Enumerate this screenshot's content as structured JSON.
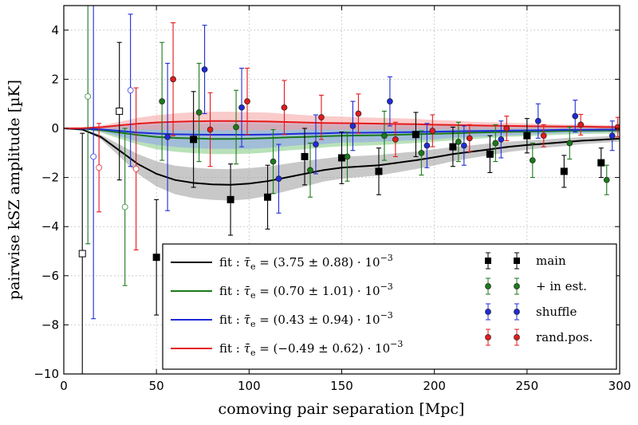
{
  "chart_data": {
    "type": "scatter",
    "xlabel": "comoving pair separation [Mpc]",
    "ylabel": "pairwise kSZ amplitude [µK]",
    "xlim": [
      0,
      300
    ],
    "ylim": [
      -10,
      5
    ],
    "xticks": [
      0,
      50,
      100,
      150,
      200,
      250,
      300
    ],
    "yticks": [
      -10,
      -8,
      -6,
      -4,
      -2,
      0,
      2,
      4
    ],
    "xtick_labels": [
      "0",
      "50",
      "100",
      "150",
      "200",
      "250",
      "300"
    ],
    "ytick_labels": [
      "−10",
      "−8",
      "−6",
      "−4",
      "−2",
      "0",
      "2",
      "4"
    ],
    "grid": true,
    "legend_position": "lower-right",
    "fits": [
      {
        "name": "fit : τ̄e = (3.75 ± 0.88) · 10⁻³",
        "label_prefix": "fit :",
        "label_sym": "τ̄",
        "label_sub": "e",
        "label_value": "= (3.75 ± 0.88) · 10",
        "label_exp": "−3",
        "color": "#000000",
        "band_color": "#9a9a9a",
        "x": [
          0,
          10,
          20,
          30,
          40,
          50,
          60,
          70,
          80,
          90,
          100,
          110,
          120,
          130,
          140,
          150,
          160,
          170,
          180,
          190,
          200,
          210,
          220,
          230,
          240,
          250,
          260,
          270,
          280,
          290,
          300
        ],
        "y": [
          0,
          -0.05,
          -0.35,
          -0.9,
          -1.45,
          -1.85,
          -2.1,
          -2.22,
          -2.28,
          -2.3,
          -2.25,
          -2.15,
          -2.0,
          -1.85,
          -1.7,
          -1.6,
          -1.55,
          -1.5,
          -1.4,
          -1.3,
          -1.18,
          -1.05,
          -0.95,
          -0.85,
          -0.75,
          -0.68,
          -0.62,
          -0.56,
          -0.5,
          -0.46,
          -0.42
        ],
        "band_lo": [
          0,
          -0.06,
          -0.44,
          -1.14,
          -1.85,
          -2.36,
          -2.68,
          -2.84,
          -2.91,
          -2.94,
          -2.88,
          -2.75,
          -2.56,
          -2.37,
          -2.17,
          -2.05,
          -1.98,
          -1.92,
          -1.79,
          -1.66,
          -1.51,
          -1.34,
          -1.21,
          -1.09,
          -0.96,
          -0.87,
          -0.79,
          -0.72,
          -0.64,
          -0.59,
          -0.54
        ],
        "band_hi": [
          0,
          -0.04,
          -0.26,
          -0.66,
          -1.05,
          -1.34,
          -1.52,
          -1.6,
          -1.65,
          -1.66,
          -1.62,
          -1.55,
          -1.44,
          -1.33,
          -1.23,
          -1.15,
          -1.12,
          -1.08,
          -1.01,
          -0.94,
          -0.85,
          -0.76,
          -0.69,
          -0.61,
          -0.54,
          -0.49,
          -0.45,
          -0.4,
          -0.36,
          -0.33,
          -0.3
        ]
      },
      {
        "name": "fit : τ̄e = (0.70 ± 1.01) · 10⁻³",
        "label_prefix": "fit :",
        "label_sym": "τ̄",
        "label_sub": "e",
        "label_value": "= (0.70 ± 1.01) · 10",
        "label_exp": "−3",
        "color": "#1a7a1a",
        "band_color": "#7fc97f",
        "x": [
          0,
          10,
          20,
          30,
          40,
          50,
          60,
          70,
          80,
          90,
          100,
          110,
          120,
          130,
          140,
          150,
          160,
          170,
          180,
          190,
          200,
          210,
          220,
          230,
          240,
          250,
          260,
          270,
          280,
          290,
          300
        ],
        "y": [
          0,
          -0.01,
          -0.07,
          -0.17,
          -0.27,
          -0.35,
          -0.39,
          -0.41,
          -0.43,
          -0.43,
          -0.42,
          -0.4,
          -0.37,
          -0.35,
          -0.32,
          -0.3,
          -0.29,
          -0.28,
          -0.26,
          -0.24,
          -0.22,
          -0.2,
          -0.18,
          -0.16,
          -0.14,
          -0.13,
          -0.12,
          -0.1,
          -0.09,
          -0.09,
          -0.08
        ],
        "band_lo": [
          0,
          -0.02,
          -0.17,
          -0.42,
          -0.66,
          -0.85,
          -0.95,
          -1.01,
          -1.05,
          -1.05,
          -1.03,
          -0.98,
          -0.9,
          -0.85,
          -0.78,
          -0.73,
          -0.71,
          -0.68,
          -0.64,
          -0.59,
          -0.54,
          -0.49,
          -0.44,
          -0.39,
          -0.34,
          -0.32,
          -0.29,
          -0.25,
          -0.22,
          -0.22,
          -0.2
        ],
        "band_hi": [
          0,
          0,
          0.03,
          0.08,
          0.12,
          0.15,
          0.17,
          0.19,
          0.19,
          0.19,
          0.19,
          0.18,
          0.16,
          0.15,
          0.14,
          0.13,
          0.13,
          0.12,
          0.12,
          0.11,
          0.1,
          0.09,
          0.08,
          0.07,
          0.06,
          0.06,
          0.05,
          0.05,
          0.04,
          0.04,
          0.04
        ]
      },
      {
        "name": "fit : τ̄e = (0.43 ± 0.94) · 10⁻³",
        "label_prefix": "fit :",
        "label_sym": "τ̄",
        "label_sub": "e",
        "label_value": "= (0.43 ± 0.94) · 10",
        "label_exp": "−3",
        "color": "#1f2bd6",
        "band_color": "#8fa0f0",
        "x": [
          0,
          10,
          20,
          30,
          40,
          50,
          60,
          70,
          80,
          90,
          100,
          110,
          120,
          130,
          140,
          150,
          160,
          170,
          180,
          190,
          200,
          210,
          220,
          230,
          240,
          250,
          260,
          270,
          280,
          290,
          300
        ],
        "y": [
          0,
          -0.01,
          -0.04,
          -0.1,
          -0.17,
          -0.21,
          -0.24,
          -0.25,
          -0.26,
          -0.26,
          -0.26,
          -0.25,
          -0.23,
          -0.21,
          -0.2,
          -0.18,
          -0.18,
          -0.17,
          -0.16,
          -0.15,
          -0.14,
          -0.12,
          -0.11,
          -0.1,
          -0.09,
          -0.08,
          -0.07,
          -0.06,
          -0.06,
          -0.05,
          -0.05
        ],
        "band_lo": [
          0,
          -0.03,
          -0.13,
          -0.32,
          -0.54,
          -0.67,
          -0.76,
          -0.8,
          -0.83,
          -0.83,
          -0.83,
          -0.8,
          -0.73,
          -0.67,
          -0.64,
          -0.57,
          -0.57,
          -0.54,
          -0.51,
          -0.48,
          -0.45,
          -0.38,
          -0.35,
          -0.32,
          -0.29,
          -0.25,
          -0.22,
          -0.19,
          -0.19,
          -0.16,
          -0.16
        ],
        "band_hi": [
          0,
          0.01,
          0.05,
          0.12,
          0.2,
          0.25,
          0.28,
          0.3,
          0.31,
          0.31,
          0.31,
          0.3,
          0.27,
          0.25,
          0.24,
          0.21,
          0.21,
          0.2,
          0.19,
          0.18,
          0.17,
          0.14,
          0.13,
          0.12,
          0.11,
          0.09,
          0.08,
          0.07,
          0.07,
          0.06,
          0.06
        ]
      },
      {
        "name": "fit : τ̄e = (−0.49 ± 0.62) · 10⁻³",
        "label_prefix": "fit :",
        "label_sym": "τ̄",
        "label_sub": "e",
        "label_value": "= (−0.49 ± 0.62) · 10",
        "label_exp": "−3",
        "color": "#e41a1c",
        "band_color": "#f5a0a0",
        "x": [
          0,
          10,
          20,
          30,
          40,
          50,
          60,
          70,
          80,
          90,
          100,
          110,
          120,
          130,
          140,
          150,
          160,
          170,
          180,
          190,
          200,
          210,
          220,
          230,
          240,
          250,
          260,
          270,
          280,
          290,
          300
        ],
        "y": [
          0,
          0.01,
          0.05,
          0.12,
          0.19,
          0.24,
          0.27,
          0.29,
          0.3,
          0.3,
          0.29,
          0.28,
          0.26,
          0.24,
          0.22,
          0.21,
          0.2,
          0.19,
          0.18,
          0.17,
          0.15,
          0.14,
          0.12,
          0.11,
          0.1,
          0.09,
          0.08,
          0.07,
          0.07,
          0.06,
          0.05
        ],
        "band_lo": [
          0,
          0,
          -0.01,
          -0.03,
          -0.05,
          -0.06,
          -0.07,
          -0.08,
          -0.08,
          -0.08,
          -0.08,
          -0.08,
          -0.07,
          -0.06,
          -0.06,
          -0.06,
          -0.05,
          -0.05,
          -0.05,
          -0.05,
          -0.04,
          -0.04,
          -0.03,
          -0.03,
          -0.03,
          -0.02,
          -0.02,
          -0.02,
          -0.02,
          -0.02,
          -0.01
        ],
        "band_hi": [
          0,
          0.02,
          0.11,
          0.27,
          0.43,
          0.54,
          0.61,
          0.66,
          0.68,
          0.68,
          0.66,
          0.64,
          0.59,
          0.54,
          0.5,
          0.48,
          0.45,
          0.43,
          0.41,
          0.39,
          0.34,
          0.32,
          0.27,
          0.25,
          0.23,
          0.2,
          0.18,
          0.16,
          0.16,
          0.14,
          0.11
        ]
      }
    ],
    "series": [
      {
        "name": "main",
        "color": "#000000",
        "marker": "square",
        "size": 8,
        "x": [
          10,
          30,
          50,
          70,
          90,
          110,
          130,
          150,
          170,
          190,
          210,
          230,
          250,
          270,
          290
        ],
        "y": [
          -5.1,
          0.7,
          -5.25,
          -0.45,
          -2.9,
          -2.8,
          -1.15,
          -1.2,
          -1.75,
          -0.25,
          -0.75,
          -1.05,
          -0.3,
          -1.75,
          -1.4
        ],
        "err": [
          4.9,
          2.8,
          2.35,
          1.95,
          1.45,
          1.3,
          1.15,
          1.05,
          0.95,
          0.9,
          0.8,
          0.75,
          0.7,
          0.65,
          0.6
        ],
        "hollow": [
          true,
          true,
          false,
          false,
          false,
          false,
          false,
          false,
          false,
          false,
          false,
          false,
          false,
          false,
          false
        ]
      },
      {
        "name": "+ in est.",
        "color": "#1a7a1a",
        "marker": "circle",
        "size": 3.5,
        "x": [
          13,
          33,
          53,
          73,
          93,
          113,
          133,
          153,
          173,
          193,
          213,
          233,
          253,
          273,
          293
        ],
        "y": [
          1.3,
          -3.2,
          1.1,
          0.65,
          0.05,
          -1.35,
          -1.7,
          -1.15,
          -0.3,
          -1.0,
          -0.55,
          -0.6,
          -1.3,
          -0.6,
          -2.1
        ],
        "err": [
          6.0,
          3.2,
          2.4,
          2.0,
          1.5,
          1.3,
          1.1,
          1.0,
          1.0,
          0.9,
          0.8,
          0.75,
          0.7,
          0.65,
          0.6
        ],
        "hollow": [
          true,
          true,
          false,
          false,
          false,
          false,
          false,
          false,
          false,
          false,
          false,
          false,
          false,
          false,
          false
        ]
      },
      {
        "name": "shuffle",
        "color": "#1f2bd6",
        "marker": "circle",
        "size": 3.5,
        "x": [
          16,
          36,
          56,
          76,
          96,
          116,
          136,
          156,
          176,
          196,
          216,
          236,
          256,
          276,
          296
        ],
        "y": [
          -1.15,
          1.55,
          -0.35,
          2.4,
          0.85,
          -2.05,
          -0.65,
          0.1,
          1.1,
          -0.7,
          -0.7,
          -0.45,
          0.3,
          0.5,
          -0.3
        ],
        "err": [
          6.6,
          3.1,
          3.0,
          1.8,
          1.6,
          1.4,
          1.2,
          1.0,
          1.0,
          0.9,
          0.8,
          0.75,
          0.7,
          0.65,
          0.6
        ],
        "hollow": [
          true,
          true,
          false,
          false,
          false,
          false,
          false,
          false,
          false,
          false,
          false,
          false,
          false,
          false,
          false
        ]
      },
      {
        "name": "rand.pos.",
        "color": "#e41a1c",
        "marker": "circle",
        "size": 3.5,
        "x": [
          19,
          39,
          59,
          79,
          99,
          119,
          139,
          159,
          179,
          199,
          219,
          239,
          259,
          279,
          299
        ],
        "y": [
          -1.6,
          -1.65,
          2.0,
          -0.05,
          1.1,
          0.85,
          0.45,
          0.6,
          -0.45,
          -0.1,
          -0.4,
          0.0,
          -0.3,
          0.15,
          0.05
        ],
        "err": [
          1.8,
          3.3,
          2.3,
          1.5,
          1.35,
          1.1,
          0.9,
          0.8,
          0.7,
          0.65,
          0.55,
          0.5,
          0.45,
          0.42,
          0.4
        ],
        "hollow": [
          true,
          true,
          false,
          false,
          false,
          false,
          false,
          false,
          false,
          false,
          false,
          false,
          false,
          false,
          false
        ]
      }
    ]
  }
}
